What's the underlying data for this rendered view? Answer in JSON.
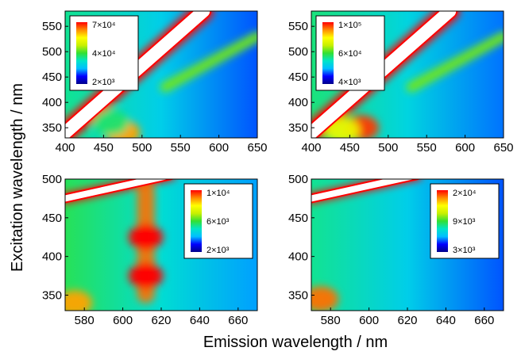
{
  "figure": {
    "xlabel": "Emission wavelength / nm",
    "ylabel": "Excitation wavelength / nm"
  },
  "colors": {
    "colormap": [
      "#00008b",
      "#0000ff",
      "#00bfff",
      "#00e5c8",
      "#33e033",
      "#c8f000",
      "#ffff00",
      "#ff8c00",
      "#ff0000"
    ],
    "saturated": "#ffffff",
    "no_data": "#000000",
    "scatter_line": "#ff0000"
  },
  "chart_data": [
    {
      "type": "heatmap",
      "panel": "top-left",
      "xlim": [
        400,
        650
      ],
      "ylim": [
        330,
        580
      ],
      "xticks": [
        "400",
        "450",
        "500",
        "550",
        "600",
        "650"
      ],
      "yticks": [
        "350",
        "400",
        "450",
        "500",
        "550"
      ],
      "colorbar": {
        "labels": [
          "7×10⁴",
          "4×10⁴",
          "2×10³"
        ],
        "range": [
          2000,
          70000
        ],
        "placement": "top-left"
      },
      "features": [
        {
          "name": "first-order Rayleigh scatter",
          "kind": "band",
          "x": [
            400,
            580
          ],
          "y": [
            340,
            580
          ],
          "width": 16,
          "value": 1.0
        },
        {
          "name": "second-order scatter",
          "kind": "band",
          "x": [
            530,
            650
          ],
          "y": [
            430,
            530
          ],
          "width": 8,
          "value": 0.55
        },
        {
          "name": "emission peak",
          "kind": "spot",
          "x": 475,
          "y": 340,
          "value": 0.85
        },
        {
          "name": "emission band",
          "kind": "spot",
          "x": 460,
          "y": 360,
          "value": 0.45
        }
      ],
      "background_level": 0.3
    },
    {
      "type": "heatmap",
      "panel": "top-right",
      "xlim": [
        400,
        650
      ],
      "ylim": [
        330,
        580
      ],
      "xticks": [
        "400",
        "450",
        "500",
        "550",
        "600",
        "650"
      ],
      "yticks": [
        "350",
        "400",
        "450",
        "500",
        "550"
      ],
      "colorbar": {
        "labels": [
          "1×10⁵",
          "6×10⁴",
          "4×10³"
        ],
        "range": [
          4000,
          100000
        ],
        "placement": "top-left"
      },
      "features": [
        {
          "name": "first-order Rayleigh scatter",
          "kind": "band",
          "x": [
            400,
            580
          ],
          "y": [
            340,
            580
          ],
          "width": 16,
          "value": 1.0
        },
        {
          "name": "second-order scatter",
          "kind": "band",
          "x": [
            530,
            650
          ],
          "y": [
            430,
            530
          ],
          "width": 8,
          "value": 0.55
        },
        {
          "name": "emission peak",
          "kind": "spot",
          "x": 465,
          "y": 350,
          "value": 0.95
        },
        {
          "name": "emission band",
          "kind": "spot",
          "x": 440,
          "y": 345,
          "value": 0.7
        }
      ],
      "background_level": 0.32
    },
    {
      "type": "heatmap",
      "panel": "bottom-left",
      "xlim": [
        570,
        670
      ],
      "ylim": [
        330,
        500
      ],
      "xticks": [
        "580",
        "600",
        "620",
        "640",
        "660"
      ],
      "yticks": [
        "350",
        "400",
        "450",
        "500"
      ],
      "colorbar": {
        "labels": [
          "1×10⁴",
          "6×10³",
          "2×10³"
        ],
        "range": [
          2000,
          10000
        ],
        "placement": "top-right"
      },
      "features": [
        {
          "name": "scatter edge",
          "kind": "band",
          "x": [
            570,
            625
          ],
          "y": [
            475,
            505
          ],
          "width": 8,
          "value": 1.0
        },
        {
          "name": "Eu emission line 612 nm",
          "kind": "column",
          "x": 612,
          "y": [
            340,
            495
          ],
          "value": 0.9
        },
        {
          "name": "excitation maximum",
          "kind": "spot",
          "x": 612,
          "y": 425,
          "value": 1.0
        },
        {
          "name": "excitation maximum",
          "kind": "spot",
          "x": 612,
          "y": 375,
          "value": 1.0
        },
        {
          "name": "low-ex corner",
          "kind": "spot",
          "x": 575,
          "y": 340,
          "value": 0.85
        }
      ],
      "background_level": 0.35
    },
    {
      "type": "heatmap",
      "panel": "bottom-right",
      "xlim": [
        570,
        670
      ],
      "ylim": [
        330,
        500
      ],
      "xticks": [
        "580",
        "600",
        "620",
        "640",
        "660"
      ],
      "yticks": [
        "350",
        "400",
        "450",
        "500"
      ],
      "colorbar": {
        "labels": [
          "2×10⁴",
          "9×10³",
          "3×10³"
        ],
        "range": [
          3000,
          20000
        ],
        "placement": "top-right"
      },
      "features": [
        {
          "name": "scatter edge",
          "kind": "band",
          "x": [
            570,
            625
          ],
          "y": [
            475,
            505
          ],
          "width": 8,
          "value": 1.0
        },
        {
          "name": "short-wavelength emission",
          "kind": "spot",
          "x": 575,
          "y": 345,
          "value": 0.9
        }
      ],
      "background_level": 0.3
    }
  ]
}
